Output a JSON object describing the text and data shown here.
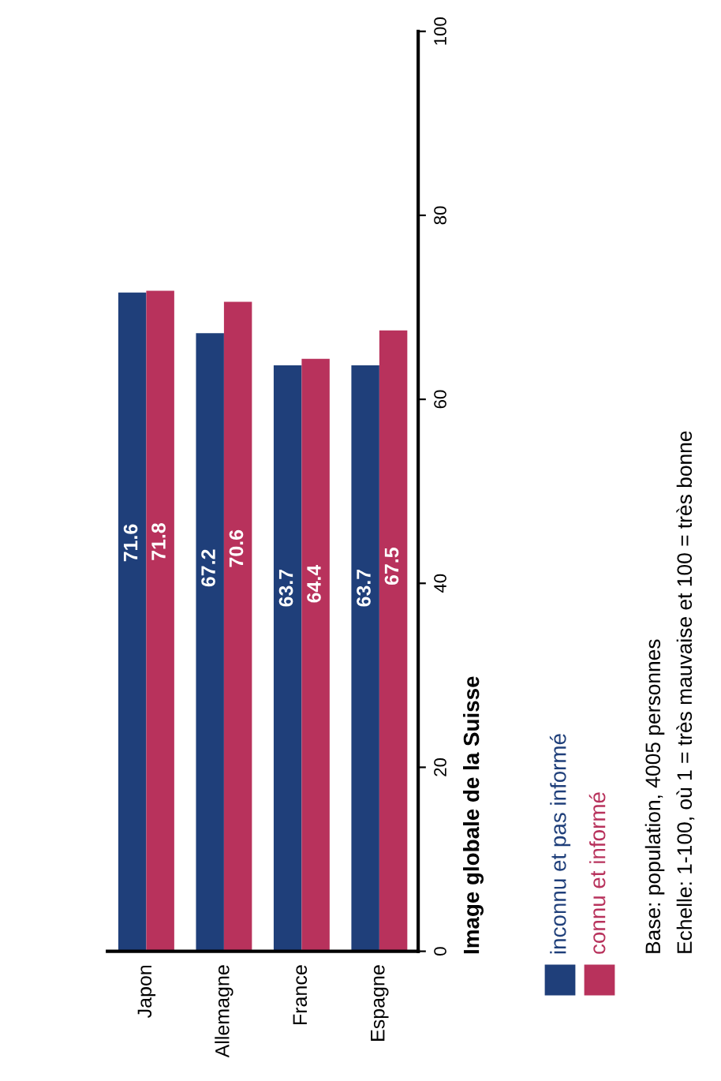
{
  "chart_data": {
    "type": "bar",
    "title": "Image globale de la Suisse",
    "categories": [
      "Japon",
      "Allemagne",
      "France",
      "Espagne"
    ],
    "series": [
      {
        "name": "inconnu et pas informé",
        "color": "#1f3f7a",
        "values": [
          71.6,
          67.2,
          63.7,
          63.7
        ]
      },
      {
        "name": "connu et informé",
        "color": "#b8325c",
        "values": [
          71.8,
          70.6,
          64.4,
          67.5
        ]
      }
    ],
    "ylim": [
      0,
      100
    ],
    "yticks": [
      0,
      20,
      40,
      60,
      80,
      100
    ],
    "data_labels": true,
    "grid": false,
    "legend": "right",
    "annotations": [
      "Base: population, 4005 personnes",
      "Echelle: 1-100, où 1 = très mauvaise et 100 = très bonne"
    ]
  }
}
